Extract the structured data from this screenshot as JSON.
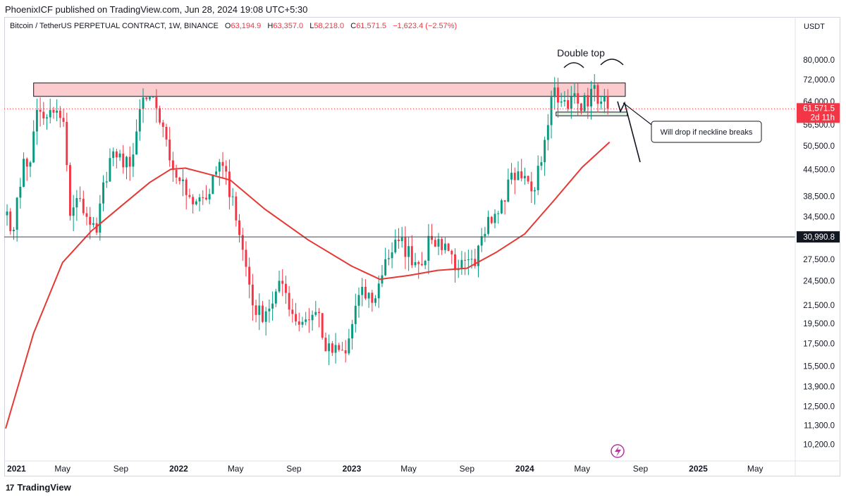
{
  "header": {
    "publisher_line": "PhoenixICF published on TradingView.com, Jun 28, 2024 19:08 UTC+5:30",
    "symbol": "Bitcoin / TetherUS PERPETUAL CONTRACT, 1W, BINANCE",
    "o_label": "O",
    "o_value": "63,194.9",
    "h_label": "H",
    "h_value": "63,357.0",
    "l_label": "L",
    "l_value": "58,218.0",
    "c_label": "C",
    "c_value": "61,571.5",
    "change": "−1,623.4 (−2.57%)",
    "currency": "USDT"
  },
  "footer": {
    "brand": "TradingView",
    "logo": "17"
  },
  "colors": {
    "up": "#089981",
    "down": "#f23645",
    "ma": "#e53935",
    "zone": "#f7a1a5",
    "neckline_zone": "#a5d6a7",
    "axis_text": "#131722"
  },
  "chart_data": {
    "type": "candlestick",
    "timeframe": "1W",
    "scale": "log",
    "y_axis_ticks": [
      80000,
      72000,
      64000,
      56500,
      50500,
      44500,
      38500,
      34500,
      27500,
      24500,
      21500,
      19500,
      17500,
      15500,
      13900,
      12500,
      11300,
      10200
    ],
    "y_axis_tick_labels": [
      "80,000.0",
      "72,000.0",
      "64,000.0",
      "56,500.0",
      "50,500.0",
      "44,500.0",
      "38,500.0",
      "34,500.0",
      "27,500.0",
      "24,500.0",
      "21,500.0",
      "19,500.0",
      "17,500.0",
      "15,500.0",
      "13,900.0",
      "12,500.0",
      "11,300.0",
      "10,200.0"
    ],
    "ylim": [
      9400,
      92000
    ],
    "x_axis_ticks": [
      {
        "date": "2021-01-04",
        "label": "2021",
        "bold": true
      },
      {
        "date": "2021-05-01",
        "label": "May",
        "bold": false
      },
      {
        "date": "2021-09-01",
        "label": "Sep",
        "bold": false
      },
      {
        "date": "2022-01-01",
        "label": "2022",
        "bold": true
      },
      {
        "date": "2022-05-01",
        "label": "May",
        "bold": false
      },
      {
        "date": "2022-09-01",
        "label": "Sep",
        "bold": false
      },
      {
        "date": "2023-01-01",
        "label": "2023",
        "bold": true
      },
      {
        "date": "2023-05-01",
        "label": "May",
        "bold": false
      },
      {
        "date": "2023-09-01",
        "label": "Sep",
        "bold": false
      },
      {
        "date": "2024-01-01",
        "label": "2024",
        "bold": true
      },
      {
        "date": "2024-05-01",
        "label": "May",
        "bold": false
      },
      {
        "date": "2024-09-01",
        "label": "Sep",
        "bold": false
      },
      {
        "date": "2025-01-01",
        "label": "2025",
        "bold": true
      },
      {
        "date": "2025-05-01",
        "label": "May",
        "bold": false
      }
    ],
    "xlim": [
      "2021-01-01",
      "2025-07-20"
    ],
    "closes": [
      {
        "week_of": "2021-01-04",
        "close": 35500
      },
      {
        "week_of": "2021-01-18",
        "close": 32200
      },
      {
        "week_of": "2021-02-08",
        "close": 47100
      },
      {
        "week_of": "2021-02-22",
        "close": 46200
      },
      {
        "week_of": "2021-03-08",
        "close": 61200
      },
      {
        "week_of": "2021-03-29",
        "close": 58800
      },
      {
        "week_of": "2021-04-12",
        "close": 60300
      },
      {
        "week_of": "2021-05-03",
        "close": 57400
      },
      {
        "week_of": "2021-05-17",
        "close": 34700
      },
      {
        "week_of": "2021-06-07",
        "close": 38000
      },
      {
        "week_of": "2021-06-21",
        "close": 34500
      },
      {
        "week_of": "2021-07-12",
        "close": 31700
      },
      {
        "week_of": "2021-07-26",
        "close": 41500
      },
      {
        "week_of": "2021-08-16",
        "close": 49000
      },
      {
        "week_of": "2021-09-06",
        "close": 45000
      },
      {
        "week_of": "2021-09-27",
        "close": 48200
      },
      {
        "week_of": "2021-10-11",
        "close": 61500
      },
      {
        "week_of": "2021-11-08",
        "close": 65600
      },
      {
        "week_of": "2021-11-22",
        "close": 57200
      },
      {
        "week_of": "2021-12-13",
        "close": 46700
      },
      {
        "week_of": "2022-01-03",
        "close": 41800
      },
      {
        "week_of": "2022-01-24",
        "close": 38400
      },
      {
        "week_of": "2022-02-14",
        "close": 38300
      },
      {
        "week_of": "2022-03-07",
        "close": 39000
      },
      {
        "week_of": "2022-03-28",
        "close": 46300
      },
      {
        "week_of": "2022-04-25",
        "close": 38500
      },
      {
        "week_of": "2022-05-09",
        "close": 31300
      },
      {
        "week_of": "2022-06-13",
        "close": 20400
      },
      {
        "week_of": "2022-07-04",
        "close": 20800
      },
      {
        "week_of": "2022-08-08",
        "close": 24100
      },
      {
        "week_of": "2022-09-05",
        "close": 19700
      },
      {
        "week_of": "2022-10-24",
        "close": 20600
      },
      {
        "week_of": "2022-11-07",
        "close": 16800
      },
      {
        "week_of": "2022-12-19",
        "close": 16600
      },
      {
        "week_of": "2023-01-16",
        "close": 22700
      },
      {
        "week_of": "2023-02-20",
        "close": 22300
      },
      {
        "week_of": "2023-03-13",
        "close": 27500
      },
      {
        "week_of": "2023-04-10",
        "close": 30300
      },
      {
        "week_of": "2023-05-22",
        "close": 26800
      },
      {
        "week_of": "2023-06-19",
        "close": 30500
      },
      {
        "week_of": "2023-07-17",
        "close": 29900
      },
      {
        "week_of": "2023-08-14",
        "close": 26100
      },
      {
        "week_of": "2023-09-18",
        "close": 26500
      },
      {
        "week_of": "2023-10-16",
        "close": 34500
      },
      {
        "week_of": "2023-11-13",
        "close": 37700
      },
      {
        "week_of": "2023-12-04",
        "close": 43700
      },
      {
        "week_of": "2024-01-08",
        "close": 41700
      },
      {
        "week_of": "2024-01-22",
        "close": 39800
      },
      {
        "week_of": "2024-02-12",
        "close": 52100
      },
      {
        "week_of": "2024-03-04",
        "close": 69000
      },
      {
        "week_of": "2024-03-18",
        "close": 64000
      },
      {
        "week_of": "2024-04-08",
        "close": 65700
      },
      {
        "week_of": "2024-04-29",
        "close": 60800
      },
      {
        "week_of": "2024-05-20",
        "close": 68500
      },
      {
        "week_of": "2024-06-10",
        "close": 64000
      },
      {
        "week_of": "2024-06-24",
        "close": 61571.5
      }
    ],
    "moving_average": [
      {
        "date": "2021-01-01",
        "value": 11100
      },
      {
        "date": "2021-03-01",
        "value": 18500
      },
      {
        "date": "2021-05-01",
        "value": 27000
      },
      {
        "date": "2021-07-01",
        "value": 32000
      },
      {
        "date": "2021-09-01",
        "value": 36500
      },
      {
        "date": "2021-11-01",
        "value": 41500
      },
      {
        "date": "2021-12-15",
        "value": 44500
      },
      {
        "date": "2022-01-15",
        "value": 44800
      },
      {
        "date": "2022-03-01",
        "value": 43500
      },
      {
        "date": "2022-04-20",
        "value": 42000
      },
      {
        "date": "2022-07-01",
        "value": 36000
      },
      {
        "date": "2022-10-01",
        "value": 30500
      },
      {
        "date": "2023-01-01",
        "value": 26500
      },
      {
        "date": "2023-03-01",
        "value": 24700
      },
      {
        "date": "2023-05-01",
        "value": 25200
      },
      {
        "date": "2023-07-01",
        "value": 25900
      },
      {
        "date": "2023-09-01",
        "value": 26200
      },
      {
        "date": "2023-11-01",
        "value": 28500
      },
      {
        "date": "2024-01-01",
        "value": 31500
      },
      {
        "date": "2024-03-01",
        "value": 37500
      },
      {
        "date": "2024-05-01",
        "value": 45000
      },
      {
        "date": "2024-06-28",
        "value": 51500
      }
    ],
    "horizontal_line": {
      "value": 30990.8,
      "label": "30,990.8"
    },
    "resistance_zone": {
      "from": 65800,
      "to": 70700,
      "start": "2021-03-01",
      "end": "2024-07-31"
    },
    "neckline_zone": {
      "from": 59300,
      "to": 60500,
      "start": "2024-03-07",
      "end": "2024-08-04"
    },
    "current_price": {
      "value": 61571.5,
      "label": "61,571.5",
      "countdown": "2d 11h"
    },
    "annotations": {
      "double_top": "Double top",
      "callout": "Will drop if neckline breaks"
    }
  }
}
